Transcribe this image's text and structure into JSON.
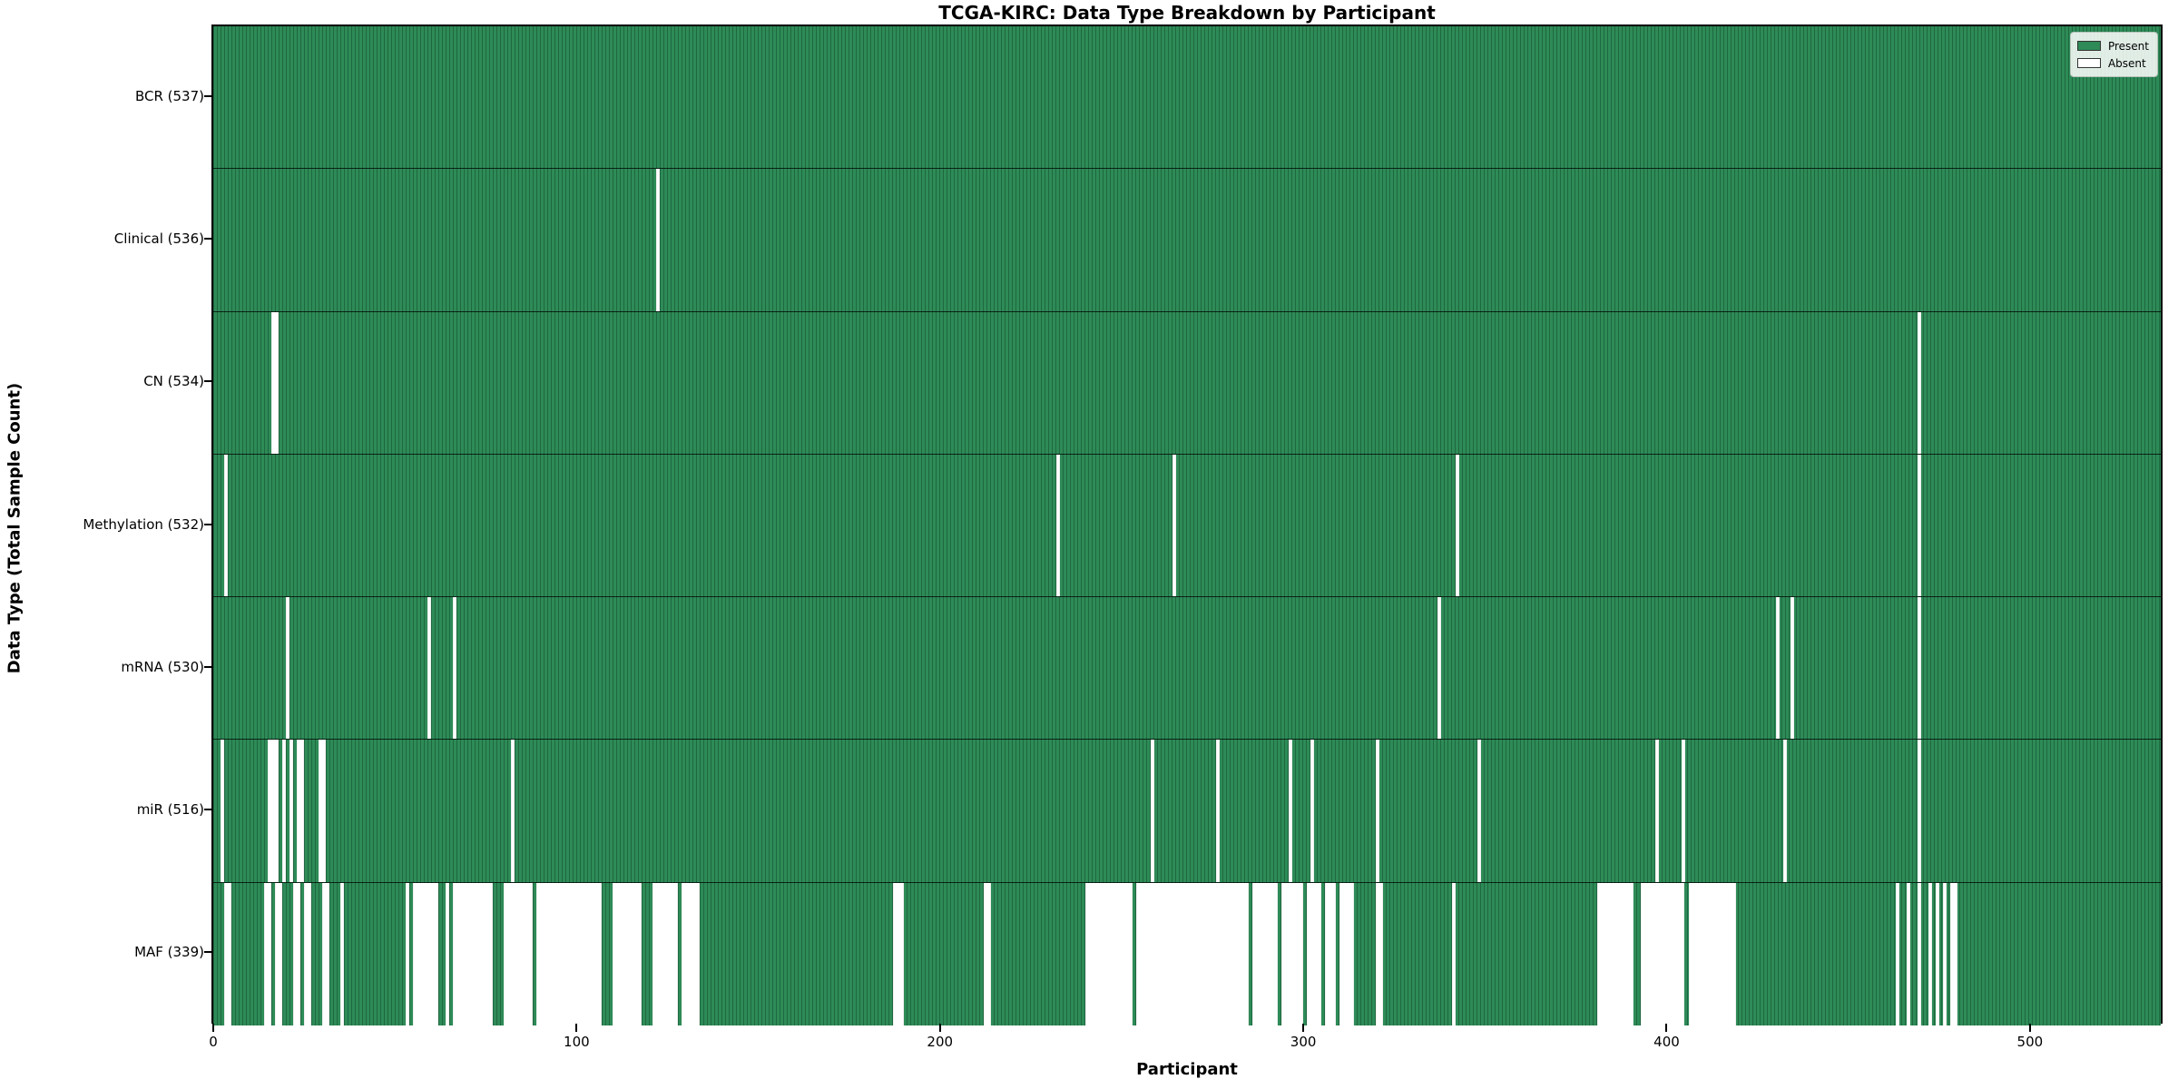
{
  "chart_data": {
    "type": "heatmap",
    "title": "TCGA-KIRC: Data Type Breakdown by Participant",
    "xlabel": "Participant",
    "ylabel": "Data Type (Total Sample Count)",
    "n_participants": 537,
    "x_ticks": [
      0,
      100,
      200,
      300,
      400,
      500
    ],
    "grid": false,
    "legend_position": "upper right",
    "colors": {
      "present": "#2e8b57",
      "absent": "#ffffff",
      "cell_edge": "rgba(0,40,20,0.35)",
      "row_separator": "#000000"
    },
    "legend": [
      {
        "label": "Present",
        "color": "#2e8b57"
      },
      {
        "label": "Absent",
        "color": "#ffffff"
      }
    ],
    "rows": [
      {
        "label": "BCR (537)",
        "data_type": "BCR",
        "present_count": 537,
        "absent_ranges": []
      },
      {
        "label": "Clinical (536)",
        "data_type": "Clinical",
        "present_count": 536,
        "absent_ranges": [
          [
            122,
            122
          ]
        ]
      },
      {
        "label": "CN (534)",
        "data_type": "CN",
        "present_count": 534,
        "absent_ranges": [
          [
            16,
            17
          ],
          [
            469,
            469
          ]
        ]
      },
      {
        "label": "Methylation (532)",
        "data_type": "Methylation",
        "present_count": 532,
        "absent_ranges": [
          [
            3,
            3
          ],
          [
            232,
            232
          ],
          [
            264,
            264
          ],
          [
            342,
            342
          ],
          [
            469,
            469
          ]
        ]
      },
      {
        "label": "mRNA (530)",
        "data_type": "mRNA",
        "present_count": 530,
        "absent_ranges": [
          [
            20,
            20
          ],
          [
            59,
            59
          ],
          [
            66,
            66
          ],
          [
            337,
            337
          ],
          [
            430,
            430
          ],
          [
            434,
            434
          ],
          [
            469,
            469
          ]
        ]
      },
      {
        "label": "miR (516)",
        "data_type": "miR",
        "present_count": 516,
        "absent_ranges": [
          [
            2,
            2
          ],
          [
            15,
            17
          ],
          [
            19,
            19
          ],
          [
            21,
            21
          ],
          [
            23,
            24
          ],
          [
            29,
            30
          ],
          [
            82,
            82
          ],
          [
            258,
            258
          ],
          [
            276,
            276
          ],
          [
            296,
            296
          ],
          [
            302,
            302
          ],
          [
            320,
            320
          ],
          [
            348,
            348
          ],
          [
            397,
            397
          ],
          [
            404,
            404
          ],
          [
            432,
            432
          ],
          [
            469,
            469
          ]
        ]
      },
      {
        "label": "MAF (339)",
        "data_type": "MAF",
        "present_count": 339,
        "absent_ranges": [
          [
            3,
            4
          ],
          [
            14,
            15
          ],
          [
            17,
            18
          ],
          [
            22,
            23
          ],
          [
            25,
            26
          ],
          [
            30,
            31
          ],
          [
            35,
            35
          ],
          [
            53,
            53
          ],
          [
            55,
            61
          ],
          [
            64,
            64
          ],
          [
            66,
            76
          ],
          [
            80,
            87
          ],
          [
            89,
            106
          ],
          [
            110,
            117
          ],
          [
            121,
            127
          ],
          [
            129,
            133
          ],
          [
            187,
            189
          ],
          [
            212,
            213
          ],
          [
            240,
            252
          ],
          [
            254,
            284
          ],
          [
            286,
            292
          ],
          [
            294,
            299
          ],
          [
            301,
            304
          ],
          [
            306,
            308
          ],
          [
            310,
            313
          ],
          [
            320,
            321
          ],
          [
            341,
            341
          ],
          [
            381,
            390
          ],
          [
            393,
            404
          ],
          [
            406,
            418
          ],
          [
            463,
            463
          ],
          [
            466,
            466
          ],
          [
            469,
            469
          ],
          [
            472,
            472
          ],
          [
            474,
            474
          ],
          [
            476,
            476
          ],
          [
            478,
            479
          ]
        ]
      }
    ]
  }
}
